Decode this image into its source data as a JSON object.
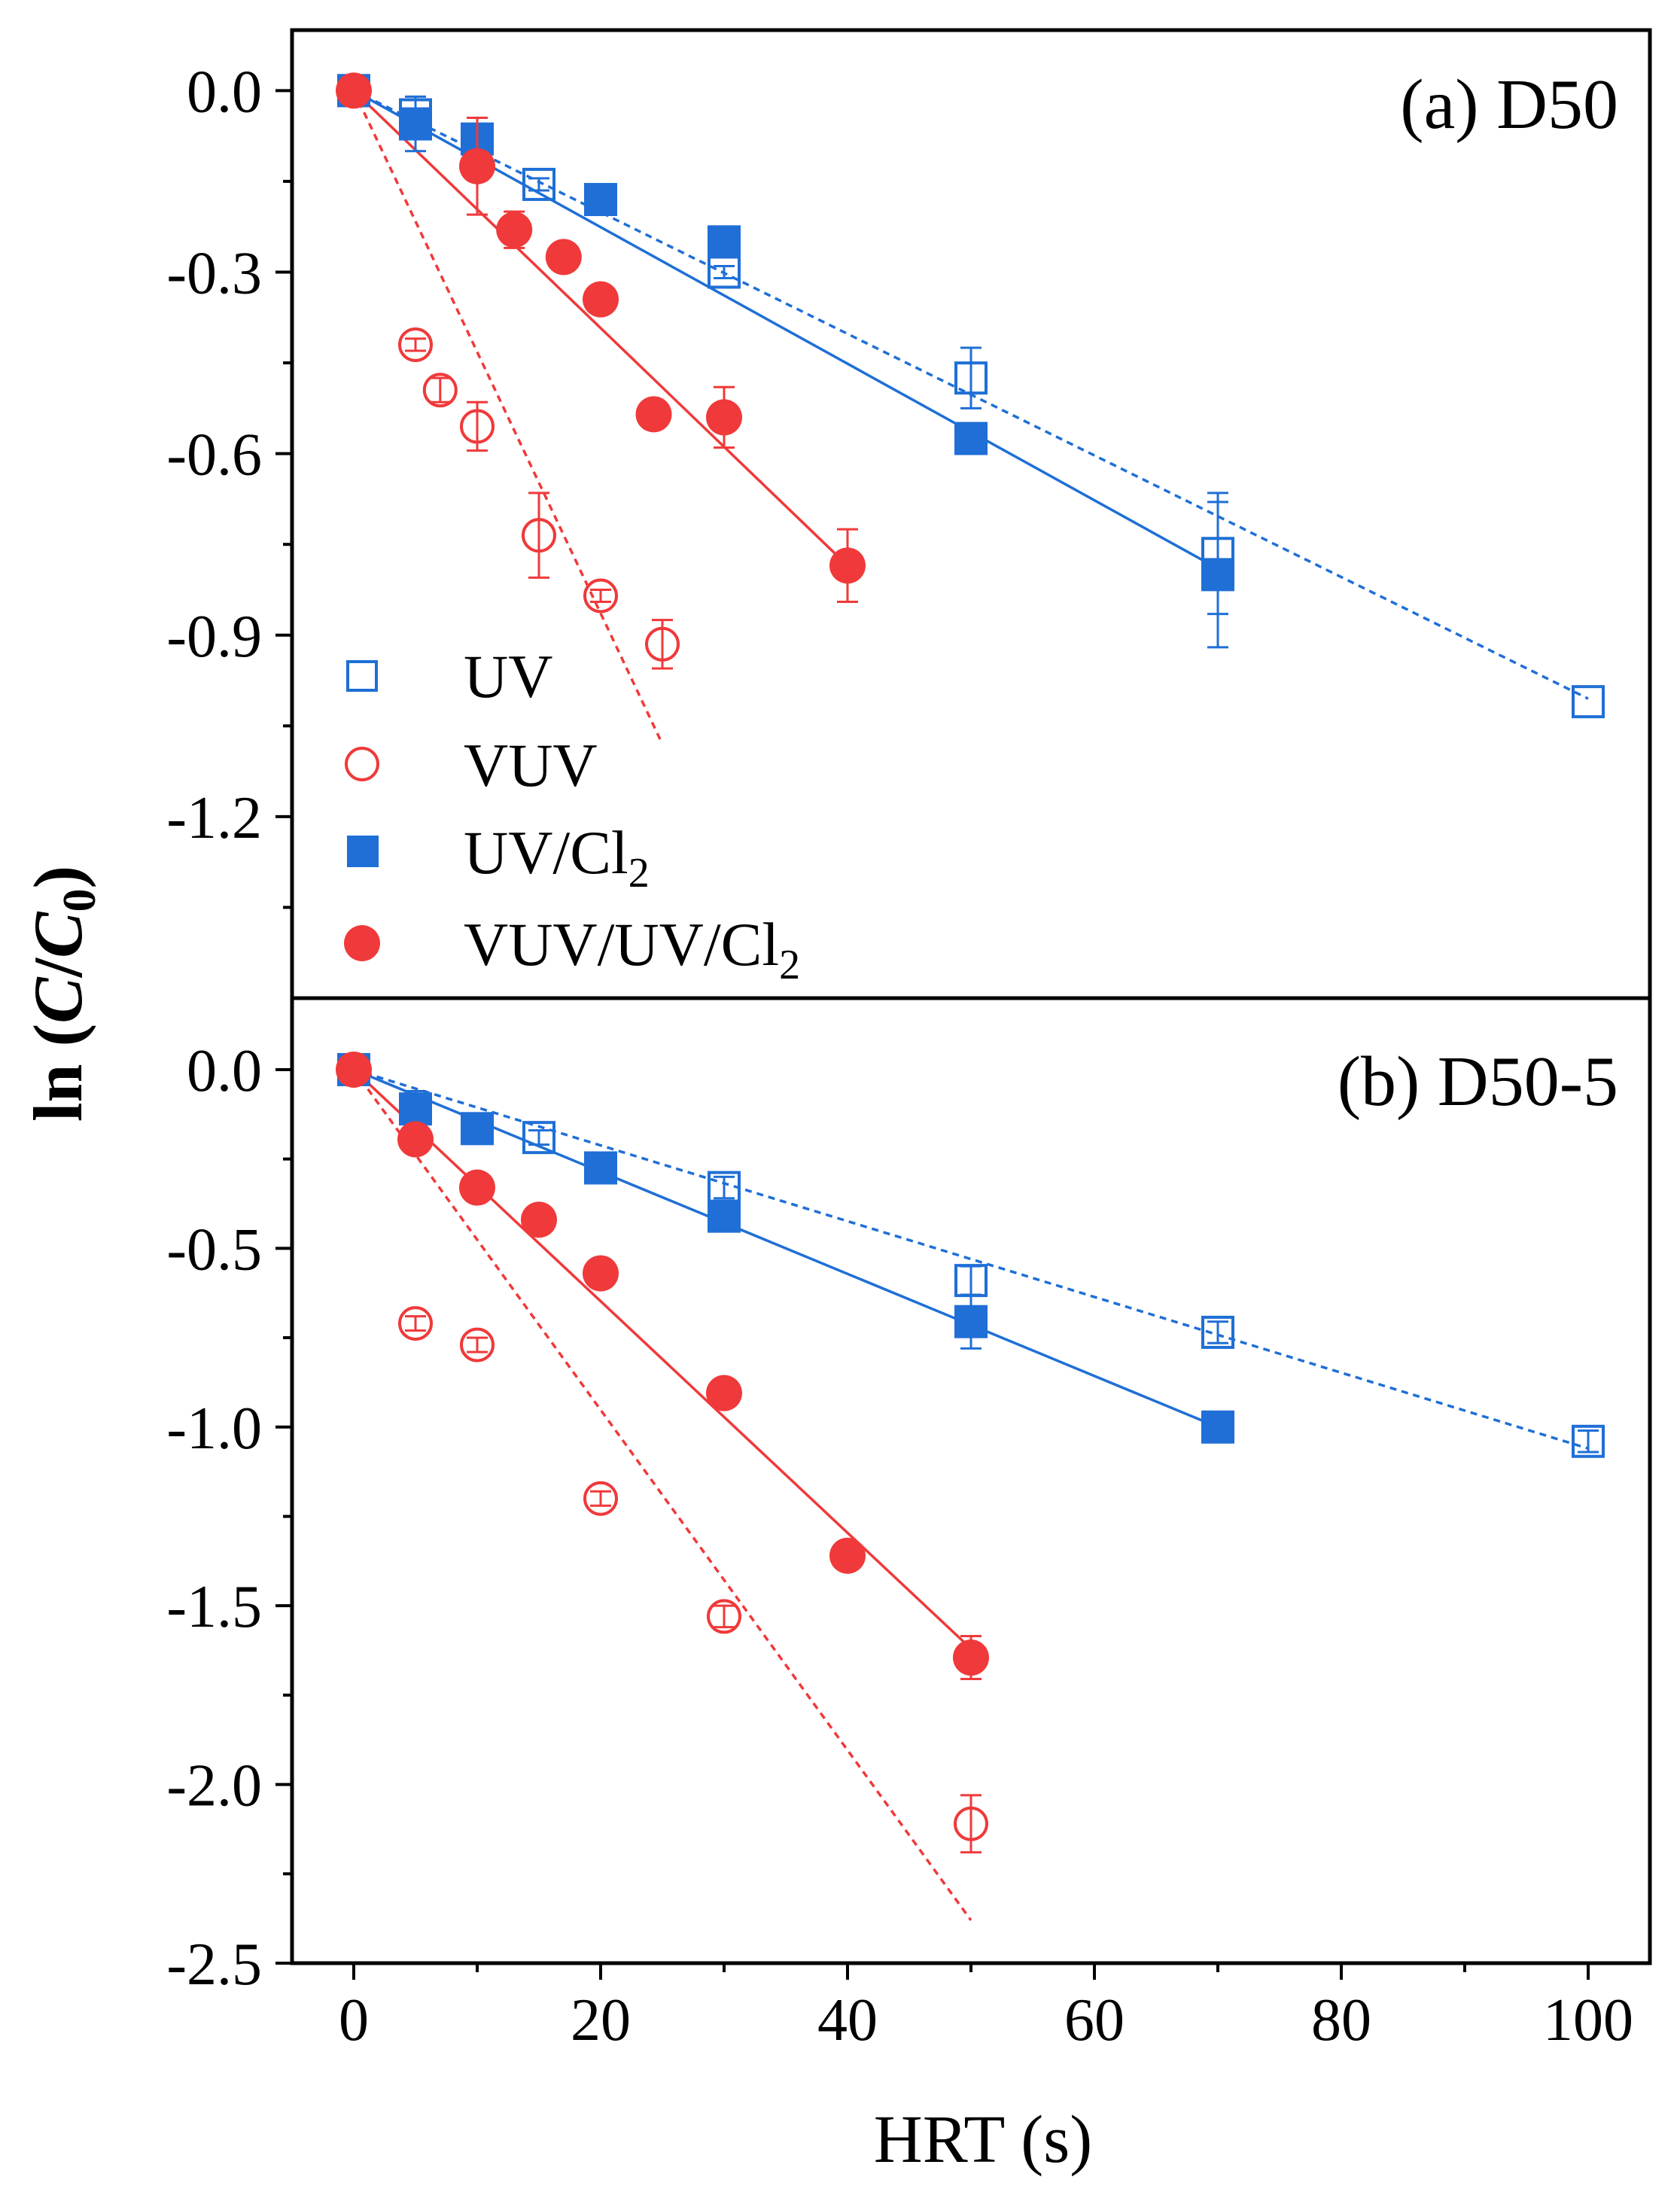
{
  "figure": {
    "ylabel_prefix": "ln (",
    "ylabel_c": "C",
    "ylabel_slash": "/",
    "ylabel_c0": "C",
    "ylabel_sub": "0",
    "ylabel_suffix": ")",
    "xlabel": "HRT (s)"
  },
  "legend": {
    "items": [
      {
        "label": "UV",
        "sub": "",
        "marker": "open-square",
        "color": "#1f6fd6"
      },
      {
        "label": "VUV",
        "sub": "",
        "marker": "open-circle",
        "color": "#f0393a"
      },
      {
        "label": "UV/Cl",
        "sub": "2",
        "marker": "filled-square",
        "color": "#1f6fd6"
      },
      {
        "label": "VUV/UV/Cl",
        "sub": "2",
        "marker": "filled-circle",
        "color": "#f0393a"
      }
    ]
  },
  "colors": {
    "blue": "#1f6fd6",
    "red": "#f0393a",
    "axis": "#000000"
  },
  "chart_data": [
    {
      "type": "scatter",
      "title": "(a) D50",
      "xlabel": "HRT (s)",
      "ylabel": "ln (C/C0)",
      "xlim": [
        -5,
        105
      ],
      "ylim": [
        -1.5,
        0.1
      ],
      "yticks": [
        0.0,
        -0.3,
        -0.6,
        -0.9,
        -1.2
      ],
      "ytick_labels": [
        "0.0",
        "-0.3",
        "-0.6",
        "-0.9",
        "-1.2"
      ],
      "series": [
        {
          "name": "UV",
          "marker": "open-square",
          "color": "#1f6fd6",
          "x": [
            0,
            5,
            15,
            30,
            50,
            70,
            100
          ],
          "y": [
            0,
            -0.04,
            -0.155,
            -0.3,
            -0.475,
            -0.765,
            -1.01
          ],
          "err": [
            0,
            0.025,
            0.01,
            0.01,
            0.05,
            0.1,
            0
          ]
        },
        {
          "name": "VUV",
          "marker": "open-circle",
          "color": "#f0393a",
          "x": [
            0,
            5,
            7,
            10,
            15,
            20,
            25
          ],
          "y": [
            0,
            -0.42,
            -0.495,
            -0.555,
            -0.735,
            -0.835,
            -0.915
          ],
          "err": [
            0,
            0.01,
            0.02,
            0.04,
            0.07,
            0.01,
            0.04
          ]
        },
        {
          "name": "UV/Cl2",
          "marker": "filled-square",
          "color": "#1f6fd6",
          "x": [
            0,
            5,
            10,
            20,
            30,
            50,
            70
          ],
          "y": [
            0,
            -0.055,
            -0.08,
            -0.18,
            -0.25,
            -0.575,
            -0.8
          ],
          "err": [
            0,
            0.045,
            0.01,
            0.01,
            0.01,
            0.02,
            0.12
          ]
        },
        {
          "name": "VUV/UV/Cl2",
          "marker": "filled-circle",
          "color": "#f0393a",
          "x": [
            0,
            10,
            13,
            17,
            20,
            24.3,
            30,
            40
          ],
          "y": [
            0,
            -0.125,
            -0.23,
            -0.275,
            -0.345,
            -0.535,
            -0.54,
            -0.785
          ],
          "err": [
            0,
            0.08,
            0.03,
            0.01,
            0.01,
            0.01,
            0.05,
            0.06
          ]
        }
      ],
      "fits": [
        {
          "name": "UV fit",
          "color": "#1f6fd6",
          "dash": true,
          "x": [
            0,
            100
          ],
          "y": [
            0,
            -1.005
          ]
        },
        {
          "name": "UV/Cl2 fit",
          "color": "#1f6fd6",
          "dash": false,
          "x": [
            0,
            70
          ],
          "y": [
            0,
            -0.79
          ]
        },
        {
          "name": "VUV fit",
          "color": "#f0393a",
          "dash": true,
          "x": [
            0,
            25
          ],
          "y": [
            0,
            -1.08
          ]
        },
        {
          "name": "VUV/UV/Cl2 fit",
          "color": "#f0393a",
          "dash": false,
          "x": [
            0,
            40
          ],
          "y": [
            0,
            -0.785
          ]
        }
      ]
    },
    {
      "type": "scatter",
      "title": "(b) D50-5",
      "xlabel": "HRT (s)",
      "ylabel": "ln (C/C0)",
      "xlim": [
        -5,
        105
      ],
      "ylim": [
        -2.5,
        0.2
      ],
      "yticks": [
        0.0,
        -0.5,
        -1.0,
        -1.5,
        -2.0,
        -2.5
      ],
      "ytick_labels": [
        "0.0",
        "-0.5",
        "-1.0",
        "-1.5",
        "-2.0",
        "-2.5"
      ],
      "xticks": [
        0,
        20,
        40,
        60,
        80,
        100
      ],
      "xtick_labels": [
        "0",
        "20",
        "40",
        "60",
        "80",
        "100"
      ],
      "series": [
        {
          "name": "UV",
          "marker": "open-square",
          "color": "#1f6fd6",
          "x": [
            0,
            15,
            30,
            50,
            70,
            100
          ],
          "y": [
            0,
            -0.19,
            -0.33,
            -0.59,
            -0.735,
            -1.04
          ],
          "err": [
            0,
            0.02,
            0.03,
            0.04,
            0.03,
            0.03
          ]
        },
        {
          "name": "VUV",
          "marker": "open-circle",
          "color": "#f0393a",
          "x": [
            5,
            10,
            20,
            30,
            50
          ],
          "y": [
            -0.71,
            -0.77,
            -1.2,
            -1.53,
            -2.11
          ],
          "err": [
            0.02,
            0.02,
            0.02,
            0.03,
            0.08
          ]
        },
        {
          "name": "UV/Cl2",
          "marker": "filled-square",
          "color": "#1f6fd6",
          "x": [
            0,
            5,
            10,
            20,
            30,
            50,
            70
          ],
          "y": [
            0,
            -0.11,
            -0.165,
            -0.275,
            -0.41,
            -0.705,
            -1.0
          ],
          "err": [
            0,
            0.05,
            0.01,
            0.01,
            0.01,
            0.075,
            0.01
          ]
        },
        {
          "name": "VUV/UV/Cl2",
          "marker": "filled-circle",
          "color": "#f0393a",
          "x": [
            0,
            5,
            10,
            15,
            20,
            30,
            40,
            50
          ],
          "y": [
            0,
            -0.195,
            -0.33,
            -0.42,
            -0.57,
            -0.905,
            -1.36,
            -1.645
          ],
          "err": [
            0,
            0.02,
            0.01,
            0.01,
            0.01,
            0.01,
            0.01,
            0.06
          ]
        }
      ],
      "fits": [
        {
          "name": "UV fit",
          "color": "#1f6fd6",
          "dash": true,
          "x": [
            0,
            100
          ],
          "y": [
            0,
            -1.06
          ]
        },
        {
          "name": "UV/Cl2 fit",
          "color": "#1f6fd6",
          "dash": false,
          "x": [
            0,
            70
          ],
          "y": [
            0,
            -1.0
          ]
        },
        {
          "name": "VUV fit",
          "color": "#f0393a",
          "dash": true,
          "x": [
            0,
            50
          ],
          "y": [
            0,
            -2.38
          ]
        },
        {
          "name": "VUV/UV/Cl2 fit",
          "color": "#f0393a",
          "dash": false,
          "x": [
            0,
            50
          ],
          "y": [
            0,
            -1.62
          ]
        }
      ]
    }
  ]
}
